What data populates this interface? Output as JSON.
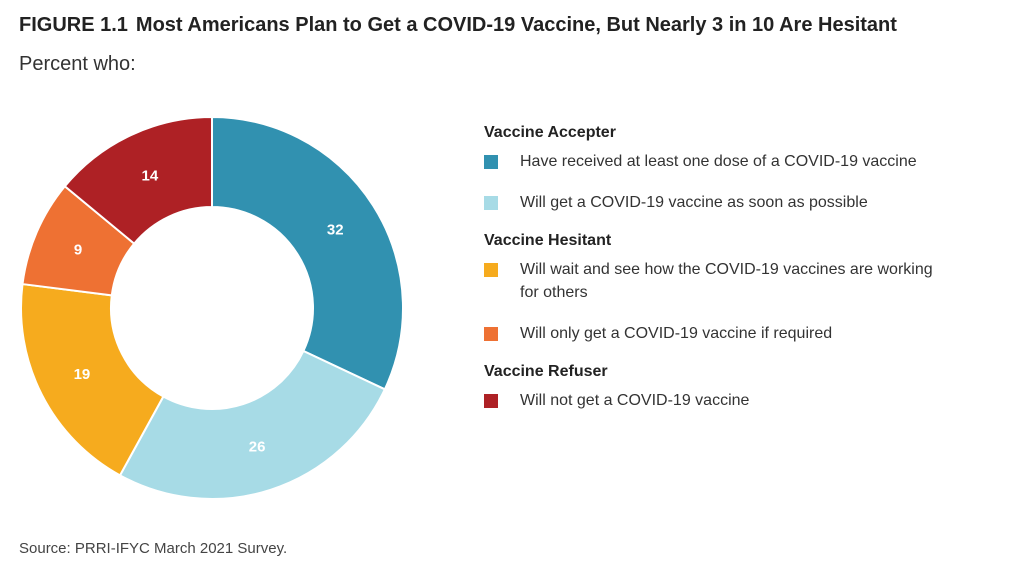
{
  "header": {
    "figure_number": "FIGURE 1.1",
    "title": "Most Americans Plan to Get a COVID-19 Vaccine, But Nearly 3 in 10 Are Hesitant",
    "subtitle": "Percent who:"
  },
  "legend": {
    "groups": [
      {
        "title": "Vaccine Accepter",
        "items": [
          {
            "label": "Have received at least one dose of a COVID-19 vaccine",
            "color": "#3191b0"
          },
          {
            "label": "Will get a COVID-19 vaccine as soon as possible",
            "color": "#a7dbe6"
          }
        ]
      },
      {
        "title": "Vaccine Hesitant",
        "items": [
          {
            "label": "Will wait and see how the COVID-19 vaccines are working for others",
            "color": "#f6ab1e"
          },
          {
            "label": "Will only get a COVID-19 vaccine if required",
            "color": "#ee7133"
          }
        ]
      },
      {
        "title": "Vaccine Refuser",
        "items": [
          {
            "label": "Will not get a COVID-19 vaccine",
            "color": "#ae2125"
          }
        ]
      }
    ]
  },
  "chart_data": {
    "type": "pie",
    "donut": true,
    "categories": [
      "Have received at least one dose of a COVID-19 vaccine",
      "Will get a COVID-19 vaccine as soon as possible",
      "Will wait and see how the COVID-19 vaccines are working for others",
      "Will only get a COVID-19 vaccine if required",
      "Will not get a COVID-19 vaccine"
    ],
    "values": [
      32,
      26,
      19,
      9,
      14
    ],
    "data_labels": [
      "32",
      "26",
      "19",
      "9",
      "14"
    ],
    "colors": [
      "#3191b0",
      "#a7dbe6",
      "#f6ab1e",
      "#ee7133",
      "#ae2125"
    ],
    "start": "12 o'clock",
    "direction": "clockwise",
    "legend_position": "right"
  },
  "footer": {
    "source": "Source: PRRI-IFYC March 2021 Survey."
  }
}
